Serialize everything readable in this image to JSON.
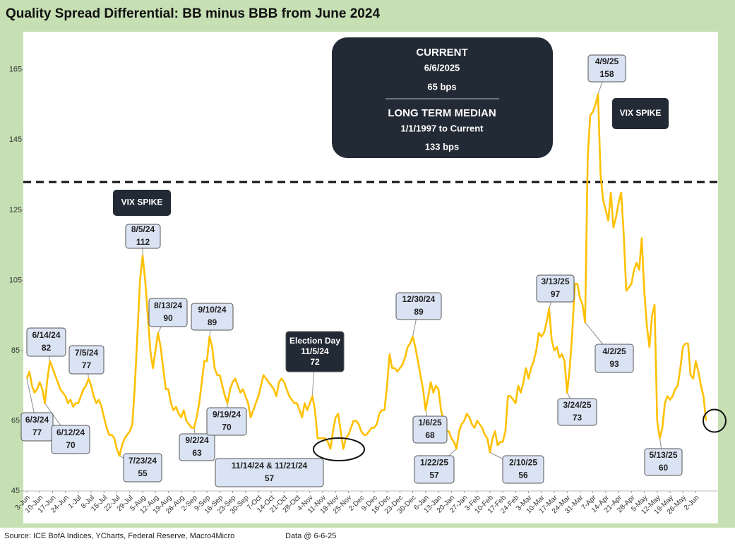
{
  "chart_data": {
    "type": "line",
    "title": "Quality Spread Differential: BB minus BBB from June 2024",
    "categories": [
      "3-Jun",
      null,
      null,
      null,
      null,
      "10-Jun",
      null,
      null,
      null,
      null,
      "17-Jun",
      null,
      null,
      null,
      null,
      "24-Jun",
      null,
      null,
      null,
      null,
      "1-Jul",
      null,
      null,
      null,
      null,
      "8-Jul",
      null,
      null,
      null,
      null,
      "15-Jul",
      null,
      null,
      null,
      null,
      "22-Jul",
      null,
      null,
      null,
      null,
      "29-Jul",
      null,
      null,
      null,
      null,
      "5-Aug",
      null,
      null,
      null,
      null,
      "12-Aug",
      null,
      null,
      null,
      null,
      "19-Aug",
      null,
      null,
      null,
      null,
      "26-Aug",
      null,
      null,
      null,
      null,
      "2-Sep",
      null,
      null,
      null,
      null,
      "9-Sep",
      null,
      null,
      null,
      null,
      "16-Sep",
      null,
      null,
      null,
      null,
      "23-Sep",
      null,
      null,
      null,
      null,
      "30-Sep",
      null,
      null,
      null,
      null,
      "7-Oct",
      null,
      null,
      null,
      null,
      "14-Oct",
      null,
      null,
      null,
      null,
      "21-Oct",
      null,
      null,
      null,
      null,
      "28-Oct",
      null,
      null,
      null,
      null,
      "4-Nov",
      null,
      null,
      null,
      null,
      "11-Nov",
      null,
      null,
      null,
      null,
      "18-Nov",
      null,
      null,
      null,
      null,
      "25-Nov",
      null,
      null,
      null,
      null,
      "2-Dec",
      null,
      null,
      null,
      null,
      "9-Dec",
      null,
      null,
      null,
      null,
      "16-Dec",
      null,
      null,
      null,
      null,
      "23-Dec",
      null,
      null,
      null,
      null,
      "30-Dec",
      null,
      null,
      null,
      null,
      "6-Jan",
      null,
      null,
      null,
      null,
      "13-Jan",
      null,
      null,
      null,
      null,
      "20-Jan",
      null,
      null,
      null,
      null,
      "27-Jan",
      null,
      null,
      null,
      null,
      "3-Feb",
      null,
      null,
      null,
      null,
      "10-Feb",
      null,
      null,
      null,
      null,
      "17-Feb",
      null,
      null,
      null,
      null,
      "24-Feb",
      null,
      null,
      null,
      null,
      "3-Mar",
      null,
      null,
      null,
      null,
      "10-Mar",
      null,
      null,
      null,
      null,
      "17-Mar",
      null,
      null,
      null,
      null,
      "24-Mar",
      null,
      null,
      null,
      null,
      "31-Mar",
      null,
      null,
      null,
      null,
      "7-Apr",
      null,
      null,
      null,
      null,
      "14-Apr",
      null,
      null,
      null,
      null,
      "21-Apr",
      null,
      null,
      null,
      null,
      "28-Apr",
      null,
      null,
      null,
      null,
      "5-May",
      null,
      null,
      null,
      null,
      "12-May",
      null,
      null,
      null,
      null,
      "19-May",
      null,
      null,
      null,
      null,
      "26-May",
      null,
      null,
      null,
      null,
      "2-Jun",
      null,
      null,
      null,
      null
    ],
    "values": [
      77,
      79,
      75,
      73,
      74,
      76,
      74,
      70,
      77,
      82,
      80,
      78,
      76,
      74,
      73,
      72,
      70,
      71,
      69,
      70,
      70,
      72,
      74,
      75,
      77,
      75,
      72,
      70,
      71,
      69,
      66,
      63,
      61,
      61,
      60,
      57,
      55,
      58,
      60,
      61,
      62,
      64,
      75,
      90,
      105,
      112,
      105,
      95,
      85,
      80,
      85,
      90,
      86,
      80,
      74,
      74,
      70,
      68,
      69,
      67,
      66,
      68,
      65,
      64,
      63,
      63,
      66,
      70,
      76,
      82,
      82,
      89,
      86,
      80,
      78,
      78,
      75,
      72,
      70,
      74,
      76,
      77,
      75,
      73,
      74,
      72,
      70,
      66,
      68,
      70,
      72,
      75,
      78,
      77,
      76,
      75,
      74,
      72,
      76,
      77,
      76,
      74,
      72,
      71,
      70,
      70,
      68,
      66,
      70,
      68,
      70,
      72,
      68,
      60,
      60,
      60,
      60,
      59,
      57,
      62,
      66,
      67,
      62,
      57,
      60,
      61,
      63,
      65,
      65,
      64,
      62,
      61,
      61,
      62,
      63,
      63,
      64,
      67,
      68,
      68,
      75,
      84,
      80,
      80,
      79,
      80,
      81,
      83,
      86,
      87,
      89,
      86,
      82,
      78,
      74,
      68,
      72,
      76,
      73,
      75,
      74,
      68,
      65,
      62,
      62,
      60,
      59,
      57,
      62,
      64,
      65,
      67,
      66,
      64,
      63,
      65,
      64,
      63,
      61,
      60,
      56,
      60,
      62,
      58,
      59,
      59,
      62,
      72,
      72,
      71,
      70,
      75,
      73,
      76,
      80,
      77,
      80,
      82,
      85,
      90,
      89,
      90,
      93,
      97,
      88,
      85,
      86,
      83,
      84,
      82,
      73,
      80,
      90,
      104,
      104,
      100,
      98,
      93,
      140,
      152,
      153,
      155,
      158,
      135,
      128,
      125,
      122,
      130,
      120,
      123,
      127,
      130,
      118,
      102,
      103,
      104,
      108,
      110,
      108,
      117,
      102,
      92,
      86,
      95,
      98,
      65,
      60,
      63,
      70,
      72,
      71,
      72,
      74,
      75,
      80,
      86,
      87,
      87,
      78,
      77,
      82,
      79,
      75,
      72,
      65
    ],
    "color": "#ffc000",
    "ylim": [
      45,
      175
    ],
    "yticks": [
      45,
      65,
      85,
      105,
      125,
      145,
      165
    ],
    "median_line": 133,
    "annotations": [
      {
        "text": "6/3/24",
        "value": 77
      },
      {
        "text": "6/12/24",
        "value": 70
      },
      {
        "text": "6/14/24",
        "value": 82
      },
      {
        "text": "7/5/24",
        "value": 77
      },
      {
        "text": "7/23/24",
        "value": 55
      },
      {
        "text": "8/5/24",
        "value": 112
      },
      {
        "text": "8/13/24",
        "value": 90
      },
      {
        "text": "9/2/24",
        "value": 63
      },
      {
        "text": "9/10/24",
        "value": 89
      },
      {
        "text": "9/19/24",
        "value": 70
      },
      {
        "title": "Election Day",
        "text": "11/5/24",
        "value": 72
      },
      {
        "text": "11/14/24 & 11/21/24",
        "value": 57
      },
      {
        "text": "12/30/24",
        "value": 89
      },
      {
        "text": "1/6/25",
        "value": 68
      },
      {
        "text": "1/22/25",
        "value": 57
      },
      {
        "text": "2/10/25",
        "value": 56
      },
      {
        "text": "3/13/25",
        "value": 97
      },
      {
        "text": "3/24/25",
        "value": 73
      },
      {
        "text": "4/2/25",
        "value": 93
      },
      {
        "text": "4/9/25",
        "value": 158
      },
      {
        "text": "5/13/25",
        "value": 60
      }
    ],
    "vix_labels": [
      "VIX SPIKE",
      "VIX SPIKE"
    ],
    "info_box": {
      "current_title": "CURRENT",
      "current_date": "6/6/2025",
      "current_value": "65 bps",
      "median_title": "LONG TERM MEDIAN",
      "median_period": "1/1/1997 to Current",
      "median_value": "133 bps"
    },
    "source": "Source: ICE BofA Indices, YCharts, Federal Reserve, Macro4Micro",
    "data_date": "Data @ 6-6-25"
  }
}
